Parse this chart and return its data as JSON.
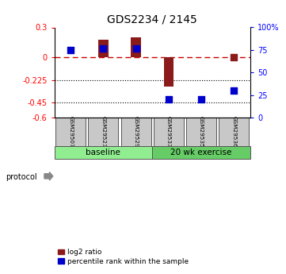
{
  "title": "GDS2234 / 2145",
  "samples": [
    "GSM29507",
    "GSM29523",
    "GSM29529",
    "GSM29533",
    "GSM29535",
    "GSM29536"
  ],
  "log2_ratio": [
    0.0,
    0.18,
    0.2,
    -0.29,
    0.0,
    0.0
  ],
  "percentile_rank": [
    75.0,
    77.0,
    77.0,
    20.0,
    20.0,
    30.0
  ],
  "show_log2_dot": [
    false,
    false,
    false,
    false,
    false,
    true
  ],
  "log2_dot_val": [
    0.0,
    0.0,
    0.0,
    0.0,
    0.0,
    0.0
  ],
  "ylim_left": [
    -0.6,
    0.3
  ],
  "ylim_right": [
    0,
    100
  ],
  "yticks_left": [
    0.3,
    0.0,
    -0.225,
    -0.45,
    -0.6
  ],
  "yticks_right": [
    100,
    75,
    50,
    25,
    0
  ],
  "ytick_labels_left": [
    "0.3",
    "0",
    "-0.225",
    "-0.45",
    "-0.6"
  ],
  "ytick_labels_right": [
    "100%",
    "75",
    "50",
    "25",
    "0"
  ],
  "dotted_lines": [
    -0.225,
    -0.45
  ],
  "group_ranges": [
    [
      0,
      2
    ],
    [
      3,
      5
    ]
  ],
  "groups": [
    {
      "label": "baseline",
      "color": "#90EE90"
    },
    {
      "label": "20 wk exercise",
      "color": "#66CC66"
    }
  ],
  "bar_color": "#8B1A1A",
  "dot_color": "#0000CD",
  "dashed_line_color": "#CC0000",
  "bg_color": "#FFFFFF",
  "sample_box_color": "#C8C8C8",
  "protocol_label": "protocol",
  "legend_items": [
    "log2 ratio",
    "percentile rank within the sample"
  ],
  "bar_width": 0.3,
  "dot_size": 35
}
